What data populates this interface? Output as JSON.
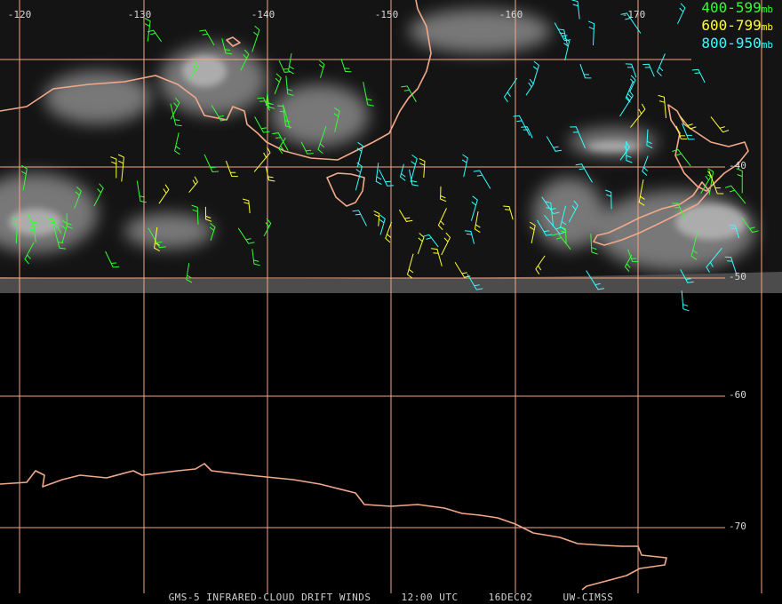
{
  "map": {
    "longitude_labels": [
      "-120",
      "-130",
      "-140",
      "-150",
      "-160",
      "-170"
    ],
    "latitude_labels": [
      "-40",
      "-50",
      "-60",
      "-70"
    ]
  },
  "legend": [
    {
      "range": "400-599",
      "unit": "mb",
      "color": "#33ff33"
    },
    {
      "range": "600-799",
      "unit": "mb",
      "color": "#ffff33"
    },
    {
      "range": "800-950",
      "unit": "mb",
      "color": "#33ffff"
    }
  ],
  "footer": {
    "product": "GMS-5 INFRARED-CLOUD DRIFT WINDS",
    "time": "12:00 UTC",
    "date": "16DEC02",
    "source": "UW-CIMSS"
  },
  "colors": {
    "grid_coast": "#f2a98a",
    "background": "#000000"
  }
}
